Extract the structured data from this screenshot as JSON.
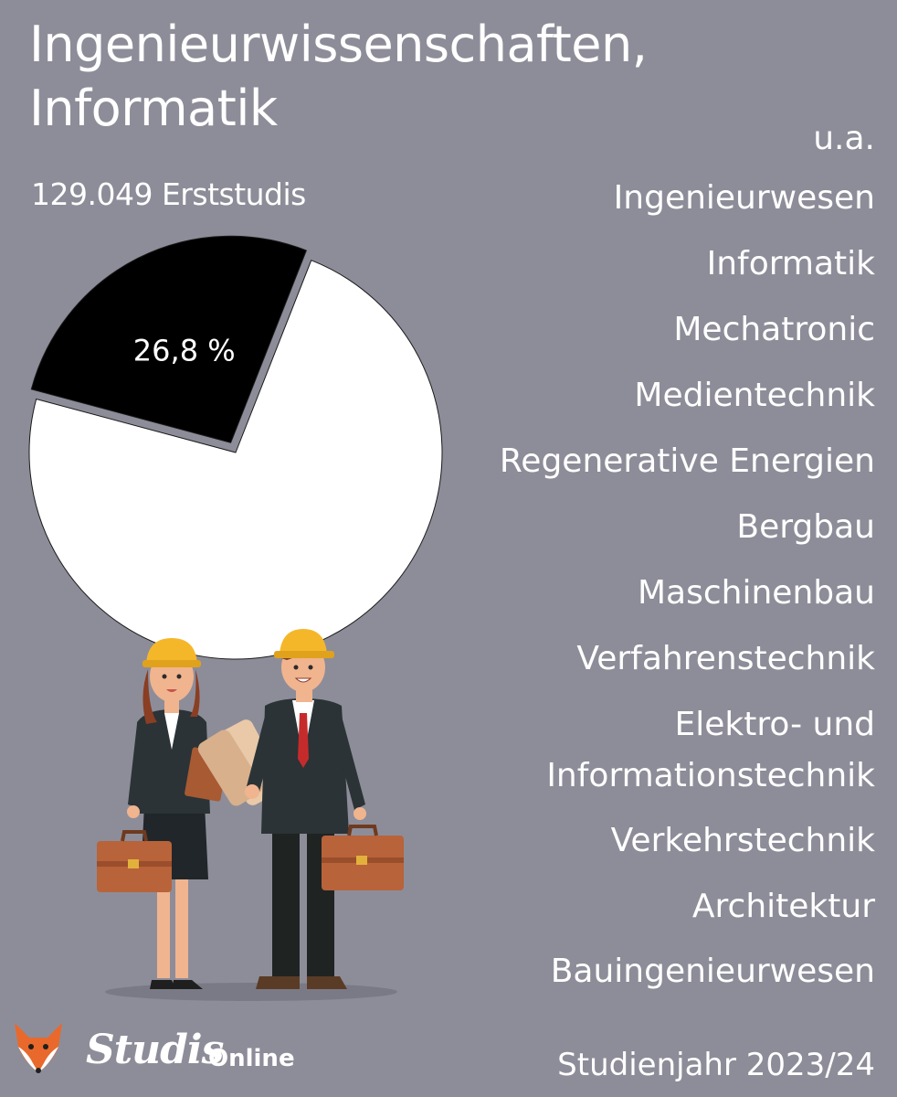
{
  "header": {
    "title_line1": "Ingenieurwissenschaften,",
    "title_line2": "Informatik",
    "subtitle": "129.049 Erststudis"
  },
  "chart_data": {
    "type": "pie",
    "slices": [
      {
        "label": "26,8 %",
        "value": 26.8,
        "color": "#000000"
      },
      {
        "label": "",
        "value": 73.2,
        "color": "#ffffff"
      }
    ]
  },
  "subjects": {
    "heading": "u.a.",
    "items": [
      "Ingenieurwesen",
      "Informatik",
      "Mechatronic",
      "Medientechnik",
      "Regenerative Energien",
      "Bergbau",
      "Maschinenbau",
      "Verfahrenstechnik",
      "Elektro- und",
      "Informationstechnik",
      "Verkehrstechnik",
      "Architektur",
      "Bauingenieurwesen"
    ]
  },
  "footer": {
    "brand": "Studis",
    "brand_suffix": "Online",
    "year": "Studienjahr 2023/24"
  },
  "icons": {
    "logo": "fox-icon",
    "illustration": "engineers-illustration"
  },
  "colors": {
    "background": "#8d8d99",
    "highlight": "#000000",
    "rest": "#ffffff"
  }
}
